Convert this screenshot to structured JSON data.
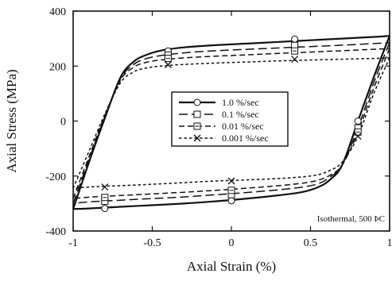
{
  "chart_data": {
    "type": "line",
    "title": "",
    "xlabel": "Axial Strain (%)",
    "ylabel": "Axial Stress (MPa)",
    "xlim": [
      -1,
      1
    ],
    "ylim": [
      -400,
      400
    ],
    "xticks": [
      -1,
      -0.5,
      0,
      0.5,
      1
    ],
    "xtick_labels": [
      "-1",
      "-0.5",
      "0",
      "0.5",
      "1"
    ],
    "yticks": [
      -400,
      -200,
      0,
      200,
      400
    ],
    "ytick_labels": [
      "-400",
      "-200",
      "0",
      "200",
      "400"
    ],
    "grid": false,
    "legend_position": "center",
    "annotation": "Isothermal, 500 ÞC",
    "series": [
      {
        "name": "1.0 %/sec",
        "line_style": "solid",
        "marker": "circle",
        "marker_x": [
          -0.8,
          -0.4,
          0,
          0.4,
          0.8
        ],
        "marker_y": [
          -318,
          255,
          -290,
          298,
          0
        ],
        "loading": {
          "x": [
            -1,
            -0.9,
            -0.8,
            -0.7,
            -0.62,
            -0.55,
            -0.45,
            -0.3,
            -0.1,
            0.1,
            0.3,
            0.5,
            0.7,
            0.9,
            1.0
          ],
          "y": [
            -320,
            -150,
            10,
            160,
            215,
            238,
            256,
            268,
            276,
            282,
            288,
            294,
            300,
            306,
            310
          ]
        },
        "unloading": {
          "x": [
            1,
            0.9,
            0.8,
            0.7,
            0.62,
            0.55,
            0.45,
            0.3,
            0.1,
            -0.1,
            -0.3,
            -0.5,
            -0.7,
            -0.9,
            -1.0
          ],
          "y": [
            310,
            160,
            0,
            -160,
            -215,
            -240,
            -258,
            -270,
            -282,
            -292,
            -300,
            -306,
            -312,
            -318,
            -320
          ]
        }
      },
      {
        "name": "0.1 %/sec",
        "line_style": "long-dash",
        "marker": "square",
        "marker_x": [
          -0.8,
          -0.4,
          0,
          0.4,
          0.8
        ],
        "marker_y": [
          -292,
          240,
          -268,
          275,
          -25
        ],
        "loading": {
          "x": [
            -1,
            -0.9,
            -0.8,
            -0.7,
            -0.62,
            -0.55,
            -0.45,
            -0.3,
            -0.1,
            0.1,
            0.3,
            0.5,
            0.7,
            0.9,
            1.0
          ],
          "y": [
            -300,
            -140,
            15,
            155,
            205,
            225,
            238,
            248,
            256,
            261,
            266,
            271,
            276,
            282,
            285
          ]
        },
        "unloading": {
          "x": [
            1,
            0.9,
            0.8,
            0.7,
            0.62,
            0.55,
            0.45,
            0.3,
            0.1,
            -0.1,
            -0.3,
            -0.5,
            -0.7,
            -0.9,
            -1.0
          ],
          "y": [
            285,
            140,
            -25,
            -160,
            -205,
            -228,
            -240,
            -250,
            -260,
            -268,
            -276,
            -282,
            -288,
            -294,
            -300
          ]
        }
      },
      {
        "name": "0.01 %/sec",
        "line_style": "dash",
        "marker": "square-dot",
        "marker_x": [
          -0.8,
          -0.4,
          0,
          0.4,
          0.8
        ],
        "marker_y": [
          -278,
          228,
          -252,
          255,
          -40
        ],
        "loading": {
          "x": [
            -1,
            -0.9,
            -0.8,
            -0.7,
            -0.62,
            -0.55,
            -0.45,
            -0.3,
            -0.1,
            0.1,
            0.3,
            0.5,
            0.7,
            0.9,
            1.0
          ],
          "y": [
            -282,
            -130,
            20,
            150,
            195,
            212,
            222,
            230,
            236,
            241,
            246,
            251,
            256,
            261,
            264
          ]
        },
        "unloading": {
          "x": [
            1,
            0.9,
            0.8,
            0.7,
            0.62,
            0.55,
            0.45,
            0.3,
            0.1,
            -0.1,
            -0.3,
            -0.5,
            -0.7,
            -0.9,
            -1.0
          ],
          "y": [
            264,
            120,
            -40,
            -160,
            -198,
            -215,
            -226,
            -235,
            -244,
            -252,
            -259,
            -265,
            -271,
            -277,
            -282
          ]
        }
      },
      {
        "name": "0.001 %/sec",
        "line_style": "short-dash",
        "marker": "x",
        "marker_x": [
          -0.8,
          -0.4,
          0,
          0.4,
          0.8
        ],
        "marker_y": [
          -240,
          205,
          -218,
          225,
          -55
        ],
        "loading": {
          "x": [
            -1,
            -0.9,
            -0.8,
            -0.7,
            -0.62,
            -0.55,
            -0.45,
            -0.3,
            -0.1,
            0.1,
            0.3,
            0.5,
            0.7,
            0.9,
            1.0
          ],
          "y": [
            -245,
            -110,
            25,
            140,
            178,
            192,
            200,
            206,
            211,
            215,
            219,
            222,
            225,
            228,
            230
          ]
        },
        "unloading": {
          "x": [
            1,
            0.9,
            0.8,
            0.7,
            0.62,
            0.55,
            0.45,
            0.3,
            0.1,
            -0.1,
            -0.3,
            -0.5,
            -0.7,
            -0.9,
            -1.0
          ],
          "y": [
            230,
            100,
            -55,
            -150,
            -180,
            -195,
            -203,
            -209,
            -214,
            -218,
            -224,
            -230,
            -235,
            -240,
            -245
          ]
        }
      }
    ]
  }
}
